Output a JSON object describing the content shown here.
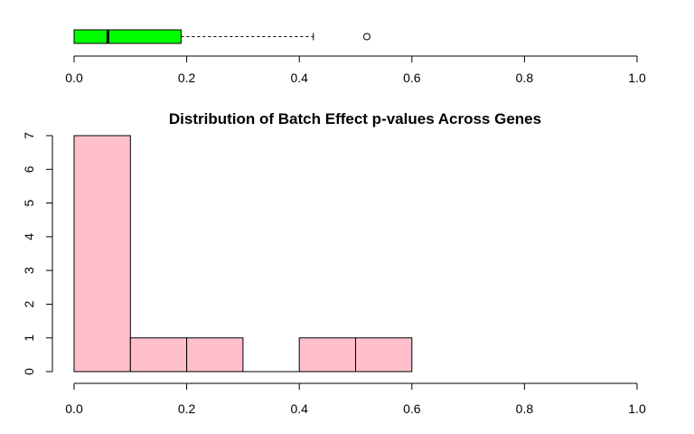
{
  "chart_data": [
    {
      "type": "boxplot",
      "orientation": "horizontal",
      "box": {
        "min": 0.0,
        "q1": 0.0,
        "median": 0.06,
        "q3": 0.19,
        "whisker_high": 0.425,
        "outliers": [
          0.52
        ]
      },
      "fill_color": "#00ff00",
      "xlim": [
        0,
        1
      ],
      "xticks": [
        "0.0",
        "0.2",
        "0.4",
        "0.6",
        "0.8",
        "1.0"
      ]
    },
    {
      "type": "histogram",
      "title": "Distribution of Batch Effect p-values Across Genes",
      "xlabel": "",
      "ylabel": "",
      "bins": [
        {
          "x0": 0.0,
          "x1": 0.1,
          "count": 7
        },
        {
          "x0": 0.1,
          "x1": 0.2,
          "count": 1
        },
        {
          "x0": 0.2,
          "x1": 0.3,
          "count": 1
        },
        {
          "x0": 0.3,
          "x1": 0.4,
          "count": 0
        },
        {
          "x0": 0.4,
          "x1": 0.5,
          "count": 1
        },
        {
          "x0": 0.5,
          "x1": 0.6,
          "count": 1
        }
      ],
      "fill_color": "#ffc0cb",
      "xlim": [
        0,
        1
      ],
      "ylim": [
        0,
        7
      ],
      "xticks": [
        "0.0",
        "0.2",
        "0.4",
        "0.6",
        "0.8",
        "1.0"
      ],
      "yticks": [
        "0",
        "1",
        "2",
        "3",
        "4",
        "5",
        "6",
        "7"
      ],
      "grid": false,
      "legend": "none"
    }
  ]
}
